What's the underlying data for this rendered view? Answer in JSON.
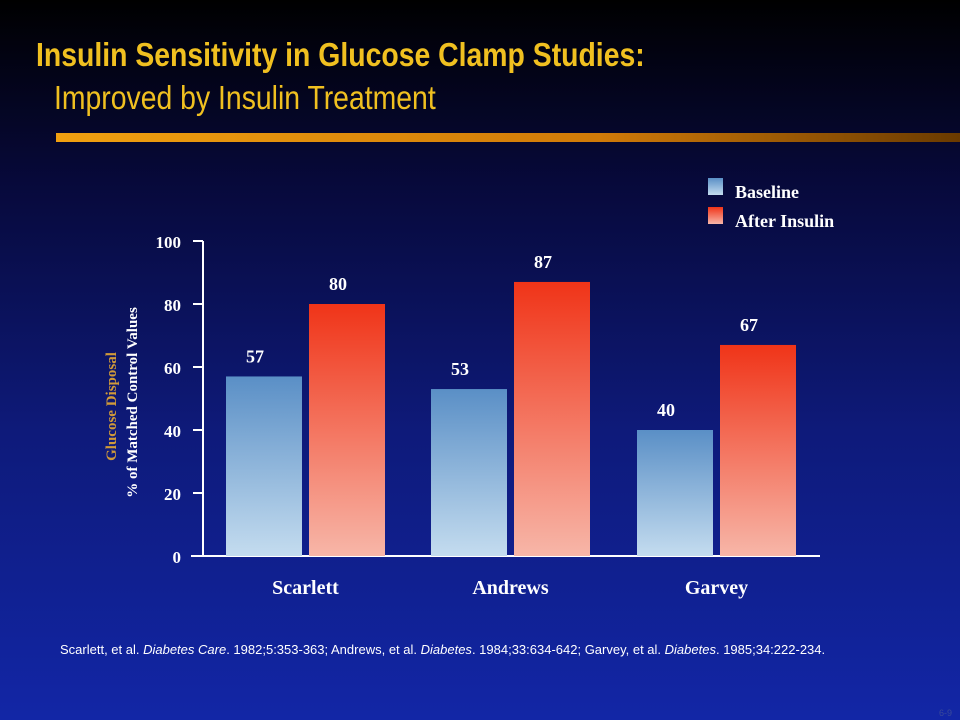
{
  "slide": {
    "title_line1": "Insulin Sensitivity in Glucose Clamp Studies:",
    "title_line2": "Improved by Insulin Treatment",
    "slide_number": "6-9",
    "citation": {
      "p1": "Scarlett, et al. ",
      "j1": "Diabetes Care",
      "p2": ". 1982;5:353-363; Andrews, et al. ",
      "j2": "Diabetes",
      "p3": ". 1984;33:634-642; Garvey, et al. ",
      "j3": "Diabetes",
      "p4": ". 1985;34:222-234."
    }
  },
  "colors": {
    "title": "#f0c020",
    "baseline_top": "#5a8fc6",
    "baseline_bottom": "#c4dcef",
    "insulin_top": "#f03418",
    "insulin_bottom": "#f7b6a8",
    "ylabel_highlight": "#d09a3a"
  },
  "chart_data": {
    "type": "bar",
    "categories": [
      "Scarlett",
      "Andrews",
      "Garvey"
    ],
    "series": [
      {
        "name": "Baseline",
        "values": [
          57,
          53,
          40
        ]
      },
      {
        "name": "After Insulin",
        "values": [
          80,
          87,
          67
        ]
      }
    ],
    "data_labels": {
      "Baseline": [
        "57",
        "53",
        "40"
      ],
      "After Insulin": [
        "80",
        "87",
        "67"
      ]
    },
    "ylabel_line1": "Glucose Disposal",
    "ylabel_line2": "% of Matched Control Values",
    "xlabel": "",
    "ylim": [
      0,
      100
    ],
    "yticks": [
      0,
      20,
      40,
      60,
      80,
      100
    ],
    "legend_position": "top-right",
    "grid": false
  }
}
